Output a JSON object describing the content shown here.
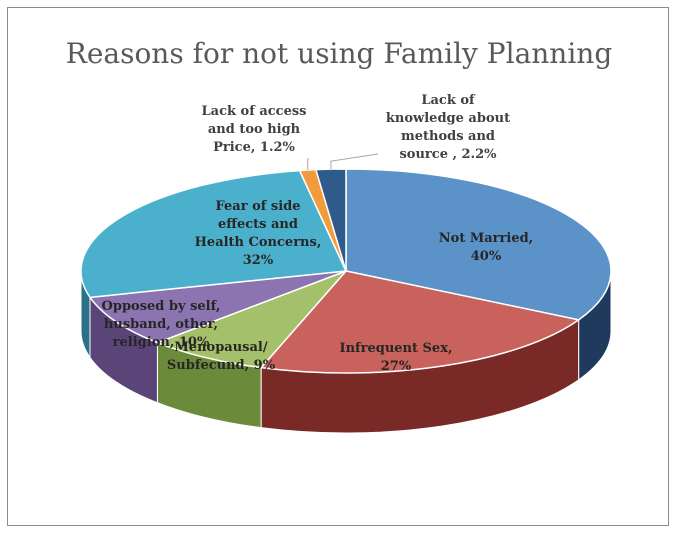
{
  "chart_data": {
    "type": "pie",
    "title": "Reasons for not using Family Planning",
    "style": "3d-exploded-none",
    "slices": [
      {
        "label": [
          "Not Married,",
          "40%"
        ],
        "name": "Not Married",
        "value": 40,
        "color_top": "#5b93c8",
        "color_side": "#1f3a5c"
      },
      {
        "label": [
          "Infrequent Sex,",
          "27%"
        ],
        "name": "Infrequent Sex",
        "value": 27,
        "color_top": "#c9615c",
        "color_side": "#7a2a26"
      },
      {
        "label": [
          "Menopausal/",
          "Subfecund, 9%"
        ],
        "name": "Menopausal/ Subfecund",
        "value": 9,
        "color_top": "#a4c06a",
        "color_side": "#6b8a3a"
      },
      {
        "label": [
          "Opposed by self,",
          "husband, other,",
          "religion, 10%"
        ],
        "name": "Opposed by self, husband, other, religion",
        "value": 10,
        "color_top": "#8b74b0",
        "color_side": "#5a4478"
      },
      {
        "label": [
          "Fear of side",
          "effects and",
          "Health Concerns,",
          "32%"
        ],
        "name": "Fear of side effects and Health Concerns",
        "value": 32,
        "color_top": "#4bb0cc",
        "color_side": "#2a7188"
      },
      {
        "label": [
          "Lack of access",
          "and too high",
          "Price, 1.2%"
        ],
        "name": "Lack of access and too high Price",
        "value": 1.2,
        "color_top": "#f29b3c",
        "color_side": "#a8621c"
      },
      {
        "label": [
          "Lack of",
          "knowledge about",
          "methods and",
          "source , 2.2%"
        ],
        "name": "Lack of knowledge about methods and source",
        "value": 2.2,
        "color_top": "#2f5b8a",
        "color_side": "#1c3656"
      }
    ],
    "legend": "none",
    "data_labels": "on-chart"
  }
}
